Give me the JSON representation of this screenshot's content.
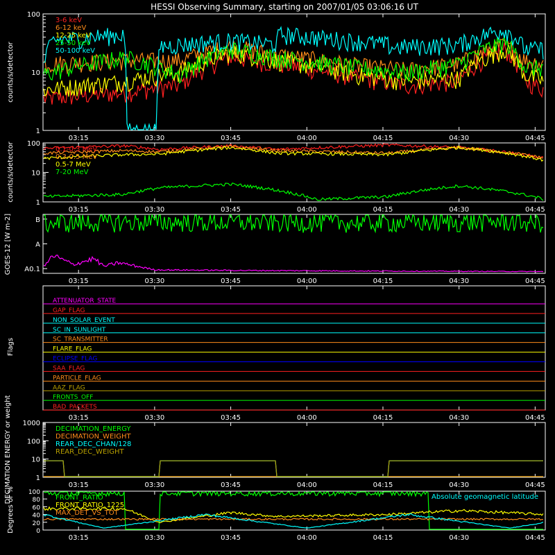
{
  "title": "HESSI Observing Summary, starting on 2007/01/05 03:06:16 UT",
  "colors": {
    "background": "#000000",
    "axis": "#ffffff",
    "red": "#ff2020",
    "orange": "#ff8c1a",
    "yellow": "#ffff00",
    "green": "#00ff00",
    "cyan": "#00ffff",
    "magenta": "#ff00ff",
    "blue": "#0000ff",
    "olive": "#b8a000"
  },
  "time_axis": {
    "range_minutes": [
      8,
      107
    ],
    "tick_minutes": [
      15,
      30,
      45,
      60,
      75,
      90,
      105
    ],
    "tick_labels": [
      "03:15",
      "03:30",
      "03:45",
      "04:00",
      "04:15",
      "04:30",
      "04:45"
    ]
  },
  "chart_data": [
    {
      "type": "line",
      "title": "HESSI Observing Summary, starting on 2007/01/05 03:06:16 UT",
      "ylabel": "counts/s/detector",
      "yscale": "log",
      "ylim": [
        1,
        100
      ],
      "ytick_labels": [
        "1",
        "10",
        "100"
      ],
      "legend_placement": "top-left",
      "series": [
        {
          "name": "3-6 keV",
          "color": "#ff2020",
          "x": [
            8,
            24,
            35,
            45,
            54,
            70,
            80,
            90,
            99,
            103,
            107
          ],
          "y": [
            3.5,
            4.5,
            6,
            18,
            14,
            8,
            6,
            7,
            25,
            7,
            5
          ]
        },
        {
          "name": "6-12 keV",
          "color": "#ff8c1a",
          "x": [
            8,
            24,
            35,
            45,
            54,
            70,
            80,
            90,
            99,
            103,
            107
          ],
          "y": [
            14,
            16,
            16,
            28,
            20,
            13,
            11,
            14,
            30,
            16,
            14
          ]
        },
        {
          "name": "12-25 keV",
          "color": "#ffff00",
          "x": [
            8,
            24,
            35,
            45,
            54,
            70,
            80,
            90,
            99,
            103,
            107
          ],
          "y": [
            5,
            7,
            10,
            22,
            16,
            9,
            7,
            8,
            25,
            9,
            7
          ]
        },
        {
          "name": "25-50 keV",
          "color": "#00ff00",
          "x": [
            8,
            24,
            35,
            45,
            54,
            70,
            80,
            90,
            99,
            103,
            107
          ],
          "y": [
            9,
            18,
            9,
            25,
            18,
            12,
            10,
            14,
            33,
            12,
            12
          ]
        },
        {
          "name": "50-100 keV",
          "color": "#00ffff",
          "x": [
            8,
            10,
            24,
            24.5,
            30.5,
            31,
            45,
            54,
            54.5,
            76,
            76.5,
            90,
            99,
            103,
            107
          ],
          "y": [
            12,
            35,
            45,
            1,
            1,
            28,
            35,
            30,
            45,
            30,
            27,
            30,
            55,
            25,
            25
          ]
        }
      ]
    },
    {
      "type": "line",
      "ylabel": "counts/s/detector",
      "yscale": "log",
      "ylim": [
        1,
        100
      ],
      "ytick_labels": [
        "1",
        "10",
        "100"
      ],
      "legend_placement": "top-left",
      "series": [
        {
          "name": "0.1-0.3 MeV",
          "color": "#ff2020",
          "x": [
            8,
            24,
            31,
            45,
            54,
            76,
            90,
            107
          ],
          "y": [
            65,
            80,
            60,
            80,
            60,
            85,
            70,
            30
          ]
        },
        {
          "name": "0.3-0.5 MeV",
          "color": "#ff8c1a",
          "x": [
            8,
            24,
            31,
            45,
            54,
            76,
            90,
            107
          ],
          "y": [
            45,
            55,
            50,
            75,
            55,
            45,
            70,
            30
          ]
        },
        {
          "name": "0.5-7 MeV",
          "color": "#ffff00",
          "x": [
            8,
            24,
            31,
            45,
            54,
            76,
            90,
            107
          ],
          "y": [
            30,
            40,
            42,
            70,
            45,
            40,
            70,
            25
          ]
        },
        {
          "name": "7-20 MeV",
          "color": "#00ff00",
          "x": [
            8,
            24,
            31,
            45,
            54,
            62,
            76,
            90,
            107
          ],
          "y": [
            1.5,
            1.8,
            3,
            4,
            2.5,
            1.2,
            1.5,
            3.5,
            1.2
          ]
        }
      ]
    },
    {
      "type": "line",
      "ylabel": "GOES-12 [W m-2]",
      "ytick_labels": [
        "A0.1",
        "A",
        "B"
      ],
      "series": [
        {
          "name": "",
          "color": "#00ff00",
          "x": [
            8,
            25,
            60,
            90,
            98,
            107
          ],
          "y": [
            0.85,
            0.87,
            0.86,
            0.86,
            0.88,
            0.85
          ]
        },
        {
          "name": "",
          "color": "#ff00ff",
          "x": [
            8,
            10,
            14,
            18,
            20,
            23,
            30,
            45,
            70,
            107
          ],
          "y": [
            0.1,
            0.3,
            0.15,
            0.25,
            0.12,
            0.18,
            0.06,
            0.05,
            0.04,
            0.03
          ]
        }
      ]
    },
    {
      "type": "line",
      "ylabel": "Flags",
      "flags": [
        {
          "name": "ATTENUATOR_STATE",
          "color": "#ff00ff"
        },
        {
          "name": "GAP_FLAG",
          "color": "#ff2020"
        },
        {
          "name": "NON_SOLAR_EVENT",
          "color": "#00ffff"
        },
        {
          "name": "SC_IN_SUNLIGHT",
          "color": "#00ffff"
        },
        {
          "name": "SC_TRANSMITTER",
          "color": "#ff8c1a"
        },
        {
          "name": "FLARE_FLAG",
          "color": "#ffff00"
        },
        {
          "name": "ECLIPSE_FLAG",
          "color": "#0000ff"
        },
        {
          "name": "SAA_FLAG",
          "color": "#ff2020"
        },
        {
          "name": "PARTICLE_FLAG",
          "color": "#ff8c1a"
        },
        {
          "name": "AAZ_FLAG",
          "color": "#b8a000"
        },
        {
          "name": "FRONTS_OFF",
          "color": "#00ff00"
        },
        {
          "name": "BAD_PACKETS",
          "color": "#ff2020"
        }
      ]
    },
    {
      "type": "line",
      "ylabel": "DECIMATION ENERGY or weight",
      "yscale": "log",
      "ylim": [
        1,
        1000
      ],
      "ytick_labels": [
        "1",
        "10",
        "100",
        "1000"
      ],
      "legend_placement": "top-left",
      "series": [
        {
          "name": "DECIMATION_ENERGY",
          "color": "#00ff00",
          "x": [
            8,
            107
          ],
          "y": [
            1,
            1
          ]
        },
        {
          "name": "DECIMATION_WEIGHT",
          "color": "#ff8c1a",
          "x": [
            8,
            107
          ],
          "y": [
            1,
            1
          ]
        },
        {
          "name": "REAR_DEC_CHAN/128",
          "color": "#00ffff",
          "x": [
            8,
            12,
            12,
            31,
            31,
            54,
            54,
            76,
            76,
            107
          ],
          "y": [
            8,
            8,
            1,
            1,
            8,
            8,
            1,
            1,
            8,
            8
          ]
        },
        {
          "name": "REAR_DEC_WEIGHT",
          "color": "#b8a000",
          "x": [
            8,
            12,
            12,
            31,
            31,
            54,
            54,
            76,
            76,
            107
          ],
          "y": [
            8,
            8,
            1,
            1,
            8,
            8,
            1,
            1,
            8,
            8
          ]
        }
      ]
    },
    {
      "type": "line",
      "ylabel": "Degrees or %",
      "ylim": [
        0,
        100
      ],
      "ytick_labels": [
        "0",
        "20",
        "40",
        "60",
        "80",
        "100"
      ],
      "legend_placement": "top-left",
      "annotations": [
        "Absolute geomagnetic latitude"
      ],
      "series": [
        {
          "name": "FRONT_RATIO",
          "color": "#00ff00",
          "x": [
            8,
            24,
            24,
            31,
            31,
            54,
            76,
            84,
            84,
            107
          ],
          "y": [
            95,
            95,
            0,
            0,
            95,
            95,
            95,
            95,
            0,
            0
          ]
        },
        {
          "name": "FRONT_RATIO_1225",
          "color": "#ffff00",
          "x": [
            8,
            24,
            31,
            45,
            54,
            76,
            90,
            99,
            107
          ],
          "y": [
            55,
            55,
            20,
            45,
            35,
            40,
            50,
            45,
            40
          ]
        },
        {
          "name": "MAX_DET_VS_TOT",
          "color": "#ff8c1a",
          "x": [
            8,
            107
          ],
          "y": [
            28,
            28
          ]
        },
        {
          "name": "",
          "color": "#00ffff",
          "x": [
            8,
            20,
            40,
            60,
            80,
            100,
            107
          ],
          "y": [
            40,
            5,
            40,
            5,
            40,
            5,
            20
          ]
        }
      ]
    }
  ]
}
